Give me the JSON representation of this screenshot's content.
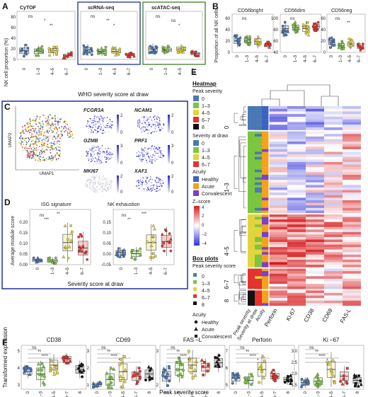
{
  "colors": {
    "g0": "#4a78b5",
    "g13": "#7cc53f",
    "g45": "#e2d53c",
    "g67": "#e5322d",
    "g8": "#111111",
    "healthy": "#3a63c2",
    "acute": "#f3a21a",
    "convalescent": "#7c3fc9",
    "box_blue": "#2c3e9a",
    "box_green": "#4a8a34"
  },
  "panelA": {
    "letter": "A",
    "ylabel": "NK cell proportion (%)",
    "xlabel": "WHO severity score at draw",
    "facets": [
      "CyTOF",
      "scRNA-seq",
      "scATAC-seq"
    ],
    "categories": [
      "0",
      "1–3",
      "4–5",
      "6–7"
    ],
    "ticks": [
      "0",
      "20",
      "40",
      "60",
      "80"
    ],
    "sig": [
      "ns",
      "*",
      "**"
    ]
  },
  "panelB": {
    "letter": "B",
    "ylabel": "Proportion of all NK cells",
    "facets": [
      "CD56bright",
      "CD56dim",
      "CD56neg"
    ],
    "categories": [
      "0",
      "1–3",
      "4–5",
      "6–7"
    ],
    "ticks_bright": [
      "0",
      "20",
      "40",
      "60"
    ],
    "ticks_dim": [
      "40",
      "60",
      "80",
      "100"
    ],
    "ticks_neg": [
      "0",
      "20",
      "40",
      "60"
    ],
    "sig": [
      "ns",
      "**"
    ]
  },
  "panelC": {
    "letter": "C",
    "umap_x": "UMAP1",
    "umap_y": "UMAP2",
    "genes": [
      "FCGR3A",
      "NCAM1",
      "GZMB",
      "PRF1",
      "MKI67",
      "XAF1"
    ],
    "scale_ticks": [
      "0",
      "1",
      "2",
      "3"
    ]
  },
  "panelD": {
    "letter": "D",
    "ylabel": "Average module score",
    "xlabel": "Severity score at draw",
    "facets": [
      "ISG signature",
      "NK exhaustion"
    ],
    "categories": [
      "0",
      "1–3",
      "4–5",
      "6–7"
    ],
    "ticks_isg": [
      "0.00",
      "0.05",
      "0.10",
      "0.15",
      "0.20"
    ],
    "ticks_exh": [
      "-0.05",
      "0.00",
      "0.05",
      "0.10",
      "0.15"
    ],
    "sig": [
      "ns",
      "*",
      "**",
      "***"
    ]
  },
  "panelE": {
    "letter": "E",
    "legend_title": "Heatmap",
    "peak_title": "Peak severity",
    "peak_levels": [
      "0",
      "1–3",
      "4–5",
      "6–7",
      "8"
    ],
    "draw_title": "Severity at draw",
    "draw_levels": [
      "0",
      "1–3",
      "4–5",
      "6–7"
    ],
    "acuity_title": "Acuity",
    "acuity_levels": [
      "Healthy",
      "Acute",
      "Convalescent"
    ],
    "z_title": "Z–score",
    "z_ticks": [
      "4",
      "2",
      "0",
      "−2",
      "−4"
    ],
    "box_title": "Box plots",
    "box_peak_title": "Peak severity score",
    "box_peak_levels": [
      "0",
      "1–3",
      "4–5",
      "6–7",
      "8"
    ],
    "box_acuity_title": "Acuity",
    "box_acuity_levels": [
      "Healthy",
      "Acute",
      "Convalescent"
    ],
    "row_groups": [
      "0",
      "1–3",
      "4–5",
      "6–7",
      "8"
    ],
    "col_labels": [
      "Peak severity",
      "Severity at draw",
      "Acuity",
      "Perforin",
      "Ki-67",
      "CD38",
      "CD69",
      "FAS-L"
    ]
  },
  "panelF": {
    "letter": "F",
    "ylabel": "Transformed expression",
    "xlabel": "Peak severity score",
    "facets": [
      "CD38",
      "CD69",
      "FAS –L",
      "Perforin",
      "Ki –67"
    ],
    "categories": [
      "0",
      "1–3",
      "4–5",
      "6–7",
      "8"
    ],
    "ticks_cd38": [
      "3",
      "4",
      "5"
    ],
    "ticks_cd69": [
      "1",
      "2",
      "3"
    ],
    "ticks_fasl": [
      "2",
      "3"
    ],
    "ticks_perf": [
      "5",
      "6",
      "7"
    ],
    "ticks_ki67": [
      "1.5",
      "2.0",
      "2.5",
      "3.0"
    ],
    "sig": [
      "ns",
      "*",
      "**",
      "***",
      "****"
    ]
  }
}
